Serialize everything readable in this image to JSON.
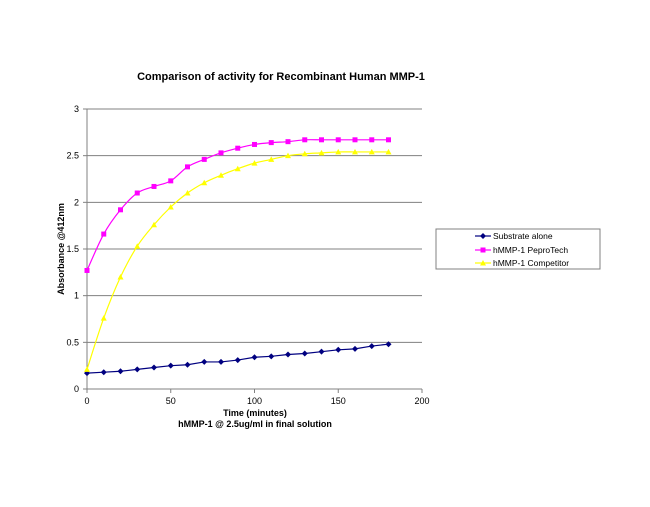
{
  "chart_data": {
    "type": "line",
    "title": "Comparison of activity for Recombinant Human MMP-1",
    "xlabel": "Time (minutes)",
    "xlabel_sub": "hMMP-1 @ 2.5ug/ml in final solution",
    "ylabel": "Absorbance @412nm",
    "xlim": [
      0,
      200
    ],
    "ylim": [
      0,
      3
    ],
    "x_ticks": [
      0,
      50,
      100,
      150,
      200
    ],
    "y_ticks": [
      0,
      0.5,
      1,
      1.5,
      2,
      2.5,
      3
    ],
    "x_tick_labels": [
      "0",
      "50",
      "100",
      "150",
      "200"
    ],
    "y_tick_labels": [
      "0",
      "0.5",
      "1",
      "1.5",
      "2",
      "2.5",
      "3"
    ],
    "grid": "horizontal",
    "legend_position": "right",
    "x": [
      0,
      10,
      20,
      30,
      40,
      50,
      60,
      70,
      80,
      90,
      100,
      110,
      120,
      130,
      140,
      150,
      160,
      170,
      180
    ],
    "series": [
      {
        "name": "Substrate alone",
        "color": "#000080",
        "marker": "diamond",
        "smooth": false,
        "values": [
          0.17,
          0.18,
          0.19,
          0.21,
          0.23,
          0.25,
          0.26,
          0.29,
          0.29,
          0.31,
          0.34,
          0.35,
          0.37,
          0.38,
          0.4,
          0.42,
          0.43,
          0.46,
          0.48
        ]
      },
      {
        "name": "hMMP-1 PeproTech",
        "color": "#FF00FF",
        "marker": "square",
        "smooth": true,
        "values": [
          1.27,
          1.66,
          1.92,
          2.1,
          2.17,
          2.23,
          2.38,
          2.46,
          2.53,
          2.58,
          2.62,
          2.64,
          2.65,
          2.67,
          2.67,
          2.67,
          2.67,
          2.67,
          2.67
        ]
      },
      {
        "name": "hMMP-1 Competitor",
        "color": "#FFFF00",
        "marker": "triangle",
        "smooth": true,
        "values": [
          0.21,
          0.76,
          1.2,
          1.53,
          1.76,
          1.95,
          2.1,
          2.21,
          2.29,
          2.36,
          2.42,
          2.46,
          2.5,
          2.52,
          2.53,
          2.54,
          2.54,
          2.54,
          2.54
        ]
      }
    ]
  }
}
